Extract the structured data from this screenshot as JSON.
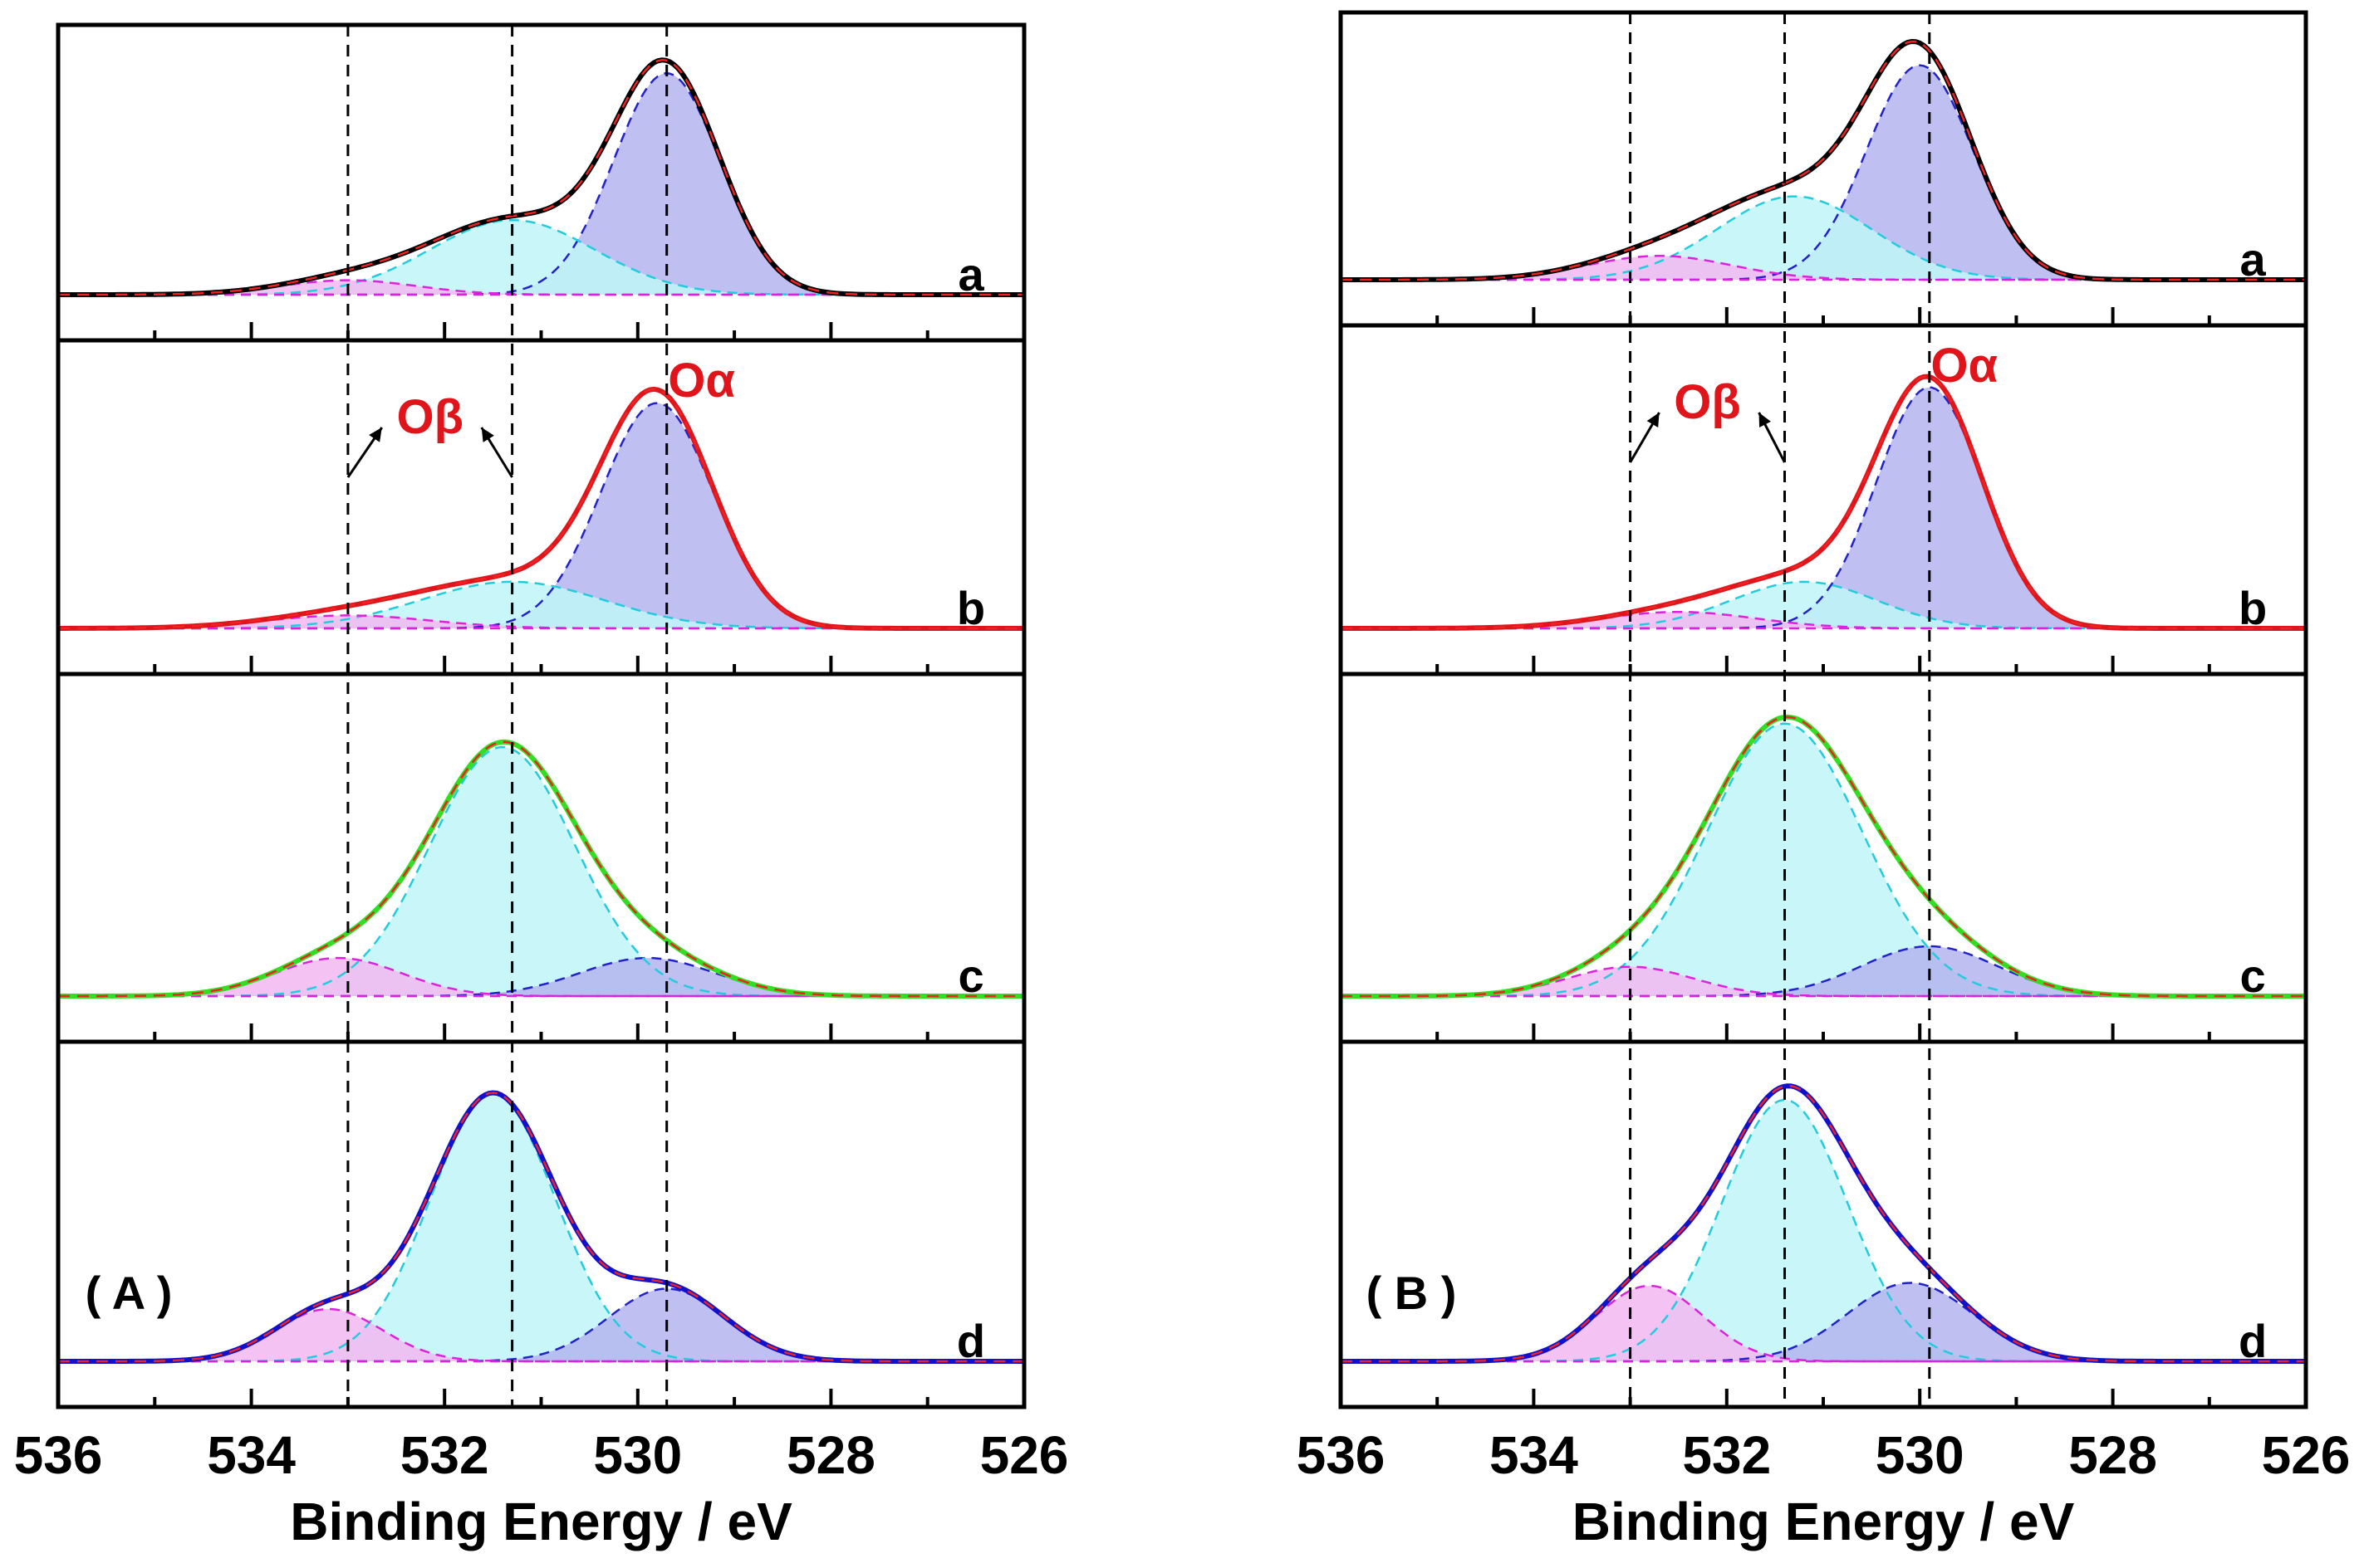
{
  "chart_data": [
    {
      "type": "line",
      "figure_label": "( A )",
      "xlabel": "Binding Energy / eV",
      "xlim": [
        536,
        526
      ],
      "x_ticks": [
        536,
        534,
        532,
        530,
        528,
        526
      ],
      "x_reversed": true,
      "reference_lines_eV": [
        533.0,
        531.3,
        529.7
      ],
      "peak_labels": {
        "beta": "Oβ",
        "alpha": "Oα"
      },
      "colors": {
        "a": "#000000",
        "b": "#e0151b",
        "c": "#33dd22",
        "d": "#1111cc",
        "alpha_fill": "#b4b4ee",
        "beta_fill": "#bff6f8",
        "gamma_fill": "#f2b8f2",
        "alpha_line": "#2222cc",
        "beta_line": "#22ccdd",
        "gamma_line": "#dd22dd",
        "fit": "#ee2222"
      },
      "panels": [
        {
          "label": "a",
          "envelope_color": "#000000",
          "fill": "#b4b4ee",
          "components": [
            {
              "name": "alpha",
              "center": 529.7,
              "height": 0.92,
              "width": 0.55
            },
            {
              "name": "beta",
              "center": 531.3,
              "height": 0.31,
              "width": 0.85
            },
            {
              "name": "gamma",
              "center": 533.0,
              "height": 0.06,
              "width": 0.7
            }
          ]
        },
        {
          "label": "b",
          "envelope_color": "#e0151b",
          "fill": "#b4b4ee",
          "components": [
            {
              "name": "alpha",
              "center": 529.8,
              "height": 0.87,
              "width": 0.58
            },
            {
              "name": "beta",
              "center": 531.3,
              "height": 0.18,
              "width": 0.95
            },
            {
              "name": "gamma",
              "center": 533.0,
              "height": 0.05,
              "width": 0.85
            }
          ]
        },
        {
          "label": "c",
          "envelope_color": "#33dd22",
          "fill": "#bff6f8",
          "components": [
            {
              "name": "alpha",
              "center": 529.9,
              "height": 0.13,
              "width": 0.7
            },
            {
              "name": "beta",
              "center": 531.4,
              "height": 0.85,
              "width": 0.75
            },
            {
              "name": "gamma",
              "center": 533.1,
              "height": 0.13,
              "width": 0.65
            }
          ]
        },
        {
          "label": "d",
          "envelope_color": "#1111cc",
          "fill": "#bff6f8",
          "components": [
            {
              "name": "alpha",
              "center": 529.7,
              "height": 0.25,
              "width": 0.6
            },
            {
              "name": "beta",
              "center": 531.5,
              "height": 0.92,
              "width": 0.65
            },
            {
              "name": "gamma",
              "center": 533.2,
              "height": 0.18,
              "width": 0.55
            }
          ]
        }
      ]
    },
    {
      "type": "line",
      "figure_label": "( B )",
      "xlabel": "Binding Energy / eV",
      "xlim": [
        536,
        526
      ],
      "x_ticks": [
        536,
        534,
        532,
        530,
        528,
        526
      ],
      "x_reversed": true,
      "reference_lines_eV": [
        533.0,
        531.4,
        529.9
      ],
      "peak_labels": {
        "beta": "Oβ",
        "alpha": "Oα"
      },
      "panels": [
        {
          "label": "a",
          "envelope_color": "#000000",
          "fill": "#b4b4ee",
          "components": [
            {
              "name": "alpha",
              "center": 530.0,
              "height": 0.9,
              "width": 0.55
            },
            {
              "name": "beta",
              "center": 531.3,
              "height": 0.35,
              "width": 0.8
            },
            {
              "name": "gamma",
              "center": 532.7,
              "height": 0.1,
              "width": 0.75
            }
          ]
        },
        {
          "label": "b",
          "envelope_color": "#e0151b",
          "fill": "#b4b4ee",
          "components": [
            {
              "name": "alpha",
              "center": 529.9,
              "height": 0.88,
              "width": 0.55
            },
            {
              "name": "beta",
              "center": 531.2,
              "height": 0.17,
              "width": 0.75
            },
            {
              "name": "gamma",
              "center": 532.5,
              "height": 0.06,
              "width": 0.8
            }
          ]
        },
        {
          "label": "c",
          "envelope_color": "#33dd22",
          "fill": "#bff6f8",
          "components": [
            {
              "name": "alpha",
              "center": 529.9,
              "height": 0.17,
              "width": 0.7
            },
            {
              "name": "beta",
              "center": 531.4,
              "height": 0.93,
              "width": 0.8
            },
            {
              "name": "gamma",
              "center": 533.0,
              "height": 0.1,
              "width": 0.65
            }
          ]
        },
        {
          "label": "d",
          "envelope_color": "#1111cc",
          "fill": "#bff6f8",
          "components": [
            {
              "name": "alpha",
              "center": 530.1,
              "height": 0.27,
              "width": 0.65
            },
            {
              "name": "beta",
              "center": 531.4,
              "height": 0.9,
              "width": 0.65
            },
            {
              "name": "gamma",
              "center": 532.8,
              "height": 0.26,
              "width": 0.55
            }
          ]
        }
      ]
    }
  ]
}
